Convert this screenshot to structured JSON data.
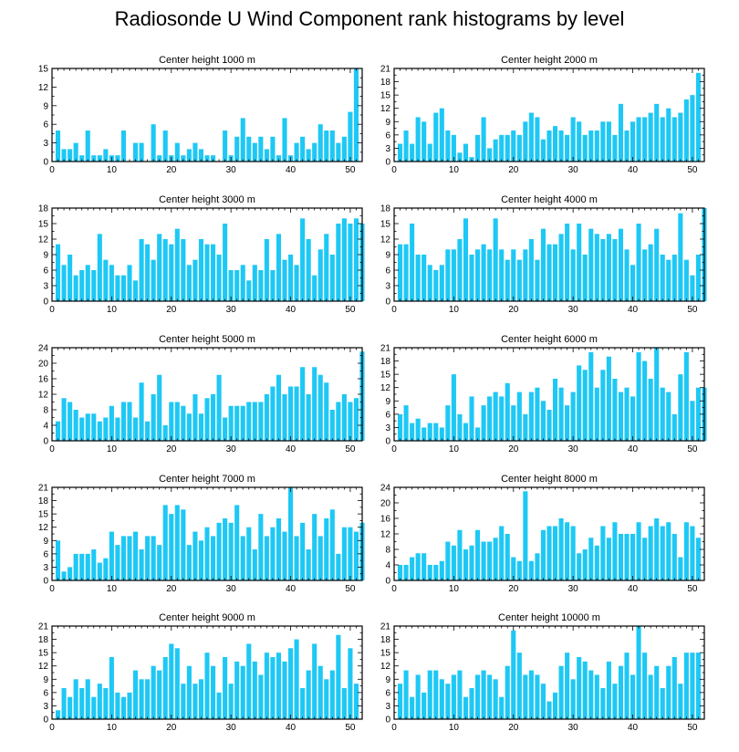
{
  "title": "Radiosonde U Wind Component rank histograms by level",
  "chart_data": [
    {
      "type": "bar",
      "title": "Center height 1000 m",
      "xlim": [
        0,
        52
      ],
      "ylim": [
        0,
        15
      ],
      "xticks": [
        0,
        10,
        20,
        30,
        40,
        50
      ],
      "yticks": [
        0,
        3,
        6,
        9,
        12,
        15
      ],
      "bar_color": "#1ec8f5",
      "values": [
        5,
        2,
        2,
        3,
        1,
        5,
        1,
        1,
        2,
        1,
        1,
        5,
        0,
        3,
        3,
        0,
        6,
        1,
        5,
        1,
        3,
        1,
        2,
        3,
        2,
        1,
        1,
        0,
        5,
        1,
        4,
        7,
        4,
        3,
        4,
        2,
        4,
        1,
        7,
        1,
        3,
        4,
        2,
        3,
        6,
        5,
        5,
        3,
        4,
        8,
        15
      ]
    },
    {
      "type": "bar",
      "title": "Center height 2000 m",
      "xlim": [
        0,
        52
      ],
      "ylim": [
        0,
        21
      ],
      "xticks": [
        0,
        10,
        20,
        30,
        40,
        50
      ],
      "yticks": [
        0,
        3,
        6,
        9,
        12,
        15,
        18,
        21
      ],
      "bar_color": "#1ec8f5",
      "values": [
        4,
        7,
        4,
        10,
        9,
        4,
        11,
        12,
        7,
        6,
        2,
        4,
        1,
        6,
        10,
        3,
        5,
        6,
        6,
        7,
        6,
        9,
        11,
        10,
        5,
        7,
        8,
        7,
        6,
        10,
        9,
        6,
        7,
        7,
        9,
        9,
        6,
        13,
        7,
        9,
        10,
        10,
        11,
        13,
        10,
        12,
        10,
        11,
        14,
        15,
        20
      ]
    },
    {
      "type": "bar",
      "title": "Center height 3000 m",
      "xlim": [
        0,
        52
      ],
      "ylim": [
        0,
        18
      ],
      "xticks": [
        0,
        10,
        20,
        30,
        40,
        50
      ],
      "yticks": [
        0,
        3,
        6,
        9,
        12,
        15,
        18
      ],
      "bar_color": "#1ec8f5",
      "values": [
        11,
        7,
        9,
        5,
        6,
        7,
        6,
        13,
        8,
        7,
        5,
        5,
        7,
        4,
        12,
        11,
        8,
        13,
        12,
        11,
        14,
        12,
        7,
        8,
        12,
        11,
        11,
        9,
        15,
        6,
        6,
        7,
        4,
        7,
        6,
        12,
        6,
        13,
        8,
        9,
        7,
        16,
        12,
        5,
        10,
        13,
        9,
        15,
        16,
        15,
        16,
        15
      ]
    },
    {
      "type": "bar",
      "title": "Center height 4000 m",
      "xlim": [
        0,
        52
      ],
      "ylim": [
        0,
        18
      ],
      "xticks": [
        0,
        10,
        20,
        30,
        40,
        50
      ],
      "yticks": [
        0,
        3,
        6,
        9,
        12,
        15,
        18
      ],
      "bar_color": "#1ec8f5",
      "values": [
        11,
        11,
        15,
        9,
        9,
        7,
        6,
        7,
        10,
        10,
        12,
        16,
        9,
        10,
        11,
        10,
        16,
        10,
        8,
        10,
        8,
        10,
        12,
        8,
        14,
        11,
        11,
        13,
        15,
        10,
        15,
        9,
        14,
        13,
        12,
        13,
        12,
        14,
        10,
        7,
        15,
        10,
        11,
        14,
        9,
        8,
        9,
        17,
        8,
        5,
        9,
        18
      ]
    },
    {
      "type": "bar",
      "title": "Center height 5000 m",
      "xlim": [
        0,
        52
      ],
      "ylim": [
        0,
        24
      ],
      "xticks": [
        0,
        10,
        20,
        30,
        40,
        50
      ],
      "yticks": [
        0,
        4,
        8,
        12,
        16,
        20,
        24
      ],
      "bar_color": "#1ec8f5",
      "values": [
        5,
        11,
        10,
        8,
        6,
        7,
        7,
        5,
        6,
        9,
        6,
        10,
        10,
        6,
        15,
        5,
        12,
        17,
        4,
        10,
        10,
        9,
        7,
        12,
        7,
        11,
        12,
        17,
        6,
        9,
        9,
        9,
        10,
        10,
        10,
        12,
        14,
        17,
        12,
        14,
        14,
        19,
        12,
        19,
        17,
        15,
        8,
        10,
        12,
        10,
        11,
        23
      ]
    },
    {
      "type": "bar",
      "title": "Center height 6000 m",
      "xlim": [
        0,
        52
      ],
      "ylim": [
        0,
        21
      ],
      "xticks": [
        0,
        10,
        20,
        30,
        40,
        50
      ],
      "yticks": [
        0,
        3,
        6,
        9,
        12,
        15,
        18,
        21
      ],
      "bar_color": "#1ec8f5",
      "values": [
        6,
        8,
        4,
        5,
        3,
        4,
        4,
        3,
        8,
        15,
        6,
        4,
        10,
        3,
        8,
        10,
        11,
        10,
        13,
        8,
        11,
        6,
        11,
        12,
        9,
        7,
        14,
        12,
        8,
        11,
        17,
        16,
        20,
        12,
        16,
        19,
        14,
        11,
        12,
        10,
        20,
        18,
        14,
        21,
        12,
        11,
        6,
        15,
        20,
        9,
        12,
        12
      ]
    },
    {
      "type": "bar",
      "title": "Center height 7000 m",
      "xlim": [
        0,
        52
      ],
      "ylim": [
        0,
        21
      ],
      "xticks": [
        0,
        10,
        20,
        30,
        40,
        50
      ],
      "yticks": [
        0,
        3,
        6,
        9,
        12,
        15,
        18,
        21
      ],
      "bar_color": "#1ec8f5",
      "values": [
        9,
        2,
        3,
        6,
        6,
        6,
        7,
        4,
        5,
        11,
        8,
        10,
        10,
        11,
        7,
        10,
        10,
        8,
        17,
        15,
        17,
        16,
        8,
        11,
        9,
        12,
        10,
        13,
        14,
        13,
        17,
        10,
        12,
        7,
        15,
        10,
        12,
        14,
        11,
        21,
        10,
        13,
        7,
        15,
        10,
        14,
        16,
        6,
        12,
        12,
        11,
        13
      ]
    },
    {
      "type": "bar",
      "title": "Center height 8000 m",
      "xlim": [
        0,
        52
      ],
      "ylim": [
        0,
        24
      ],
      "xticks": [
        0,
        10,
        20,
        30,
        40,
        50
      ],
      "yticks": [
        0,
        4,
        8,
        12,
        16,
        20,
        24
      ],
      "bar_color": "#1ec8f5",
      "values": [
        4,
        4,
        6,
        7,
        7,
        4,
        4,
        5,
        10,
        9,
        13,
        8,
        9,
        13,
        10,
        10,
        11,
        14,
        12,
        6,
        5,
        23,
        5,
        7,
        13,
        14,
        14,
        16,
        15,
        14,
        7,
        8,
        11,
        9,
        14,
        11,
        15,
        12,
        12,
        12,
        15,
        11,
        14,
        16,
        14,
        15,
        12,
        6,
        15,
        14,
        11
      ]
    },
    {
      "type": "bar",
      "title": "Center height 9000 m",
      "xlim": [
        0,
        52
      ],
      "ylim": [
        0,
        21
      ],
      "xticks": [
        0,
        10,
        20,
        30,
        40,
        50
      ],
      "yticks": [
        0,
        3,
        6,
        9,
        12,
        15,
        18,
        21
      ],
      "bar_color": "#1ec8f5",
      "values": [
        2,
        7,
        5,
        9,
        7,
        9,
        5,
        8,
        7,
        14,
        6,
        5,
        6,
        11,
        9,
        9,
        12,
        11,
        14,
        17,
        16,
        8,
        12,
        8,
        9,
        15,
        12,
        6,
        14,
        8,
        13,
        12,
        17,
        13,
        10,
        15,
        14,
        15,
        13,
        16,
        18,
        7,
        11,
        17,
        12,
        9,
        11,
        19,
        7,
        16,
        8
      ]
    },
    {
      "type": "bar",
      "title": "Center height 10000 m",
      "xlim": [
        0,
        52
      ],
      "ylim": [
        0,
        21
      ],
      "xticks": [
        0,
        10,
        20,
        30,
        40,
        50
      ],
      "yticks": [
        0,
        3,
        6,
        9,
        12,
        15,
        18,
        21
      ],
      "bar_color": "#1ec8f5",
      "values": [
        8,
        11,
        5,
        10,
        6,
        11,
        11,
        9,
        8,
        10,
        11,
        5,
        7,
        10,
        11,
        10,
        9,
        5,
        12,
        20,
        15,
        10,
        11,
        10,
        8,
        4,
        6,
        12,
        15,
        9,
        14,
        13,
        11,
        10,
        7,
        13,
        8,
        12,
        15,
        10,
        21,
        15,
        10,
        12,
        7,
        12,
        14,
        8,
        15,
        15,
        15
      ]
    }
  ]
}
